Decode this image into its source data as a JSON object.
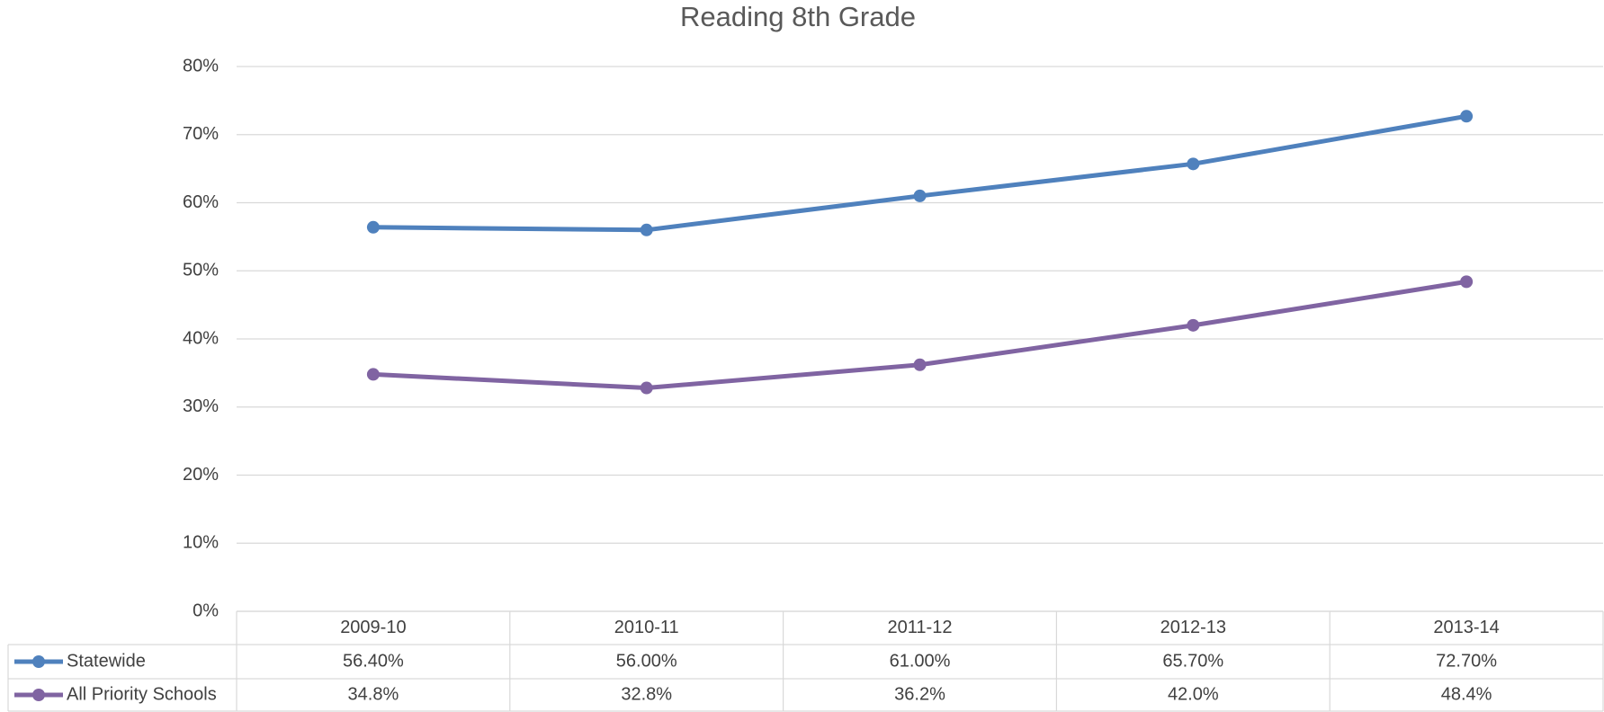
{
  "chart_data": {
    "type": "line",
    "title": "Reading 8th Grade",
    "categories": [
      "2009-10",
      "2010-11",
      "2011-12",
      "2012-13",
      "2013-14"
    ],
    "series": [
      {
        "name": "Statewide",
        "color": "#4f81bd",
        "values": [
          56.4,
          56.0,
          61.0,
          65.7,
          72.7
        ],
        "value_labels": [
          "56.40%",
          "56.00%",
          "61.00%",
          "65.70%",
          "72.70%"
        ]
      },
      {
        "name": "All Priority Schools",
        "color": "#8064a2",
        "values": [
          34.8,
          32.8,
          36.2,
          42.0,
          48.4
        ],
        "value_labels": [
          "34.8%",
          "32.8%",
          "36.2%",
          "42.0%",
          "48.4%"
        ]
      }
    ],
    "ylim": [
      0,
      80
    ],
    "yticks": [
      {
        "value": 0,
        "label": "0%"
      },
      {
        "value": 10,
        "label": "10%"
      },
      {
        "value": 20,
        "label": "20%"
      },
      {
        "value": 30,
        "label": "30%"
      },
      {
        "value": 40,
        "label": "40%"
      },
      {
        "value": 50,
        "label": "50%"
      },
      {
        "value": 60,
        "label": "60%"
      },
      {
        "value": 70,
        "label": "70%"
      },
      {
        "value": 80,
        "label": "80%"
      }
    ],
    "grid": true
  }
}
